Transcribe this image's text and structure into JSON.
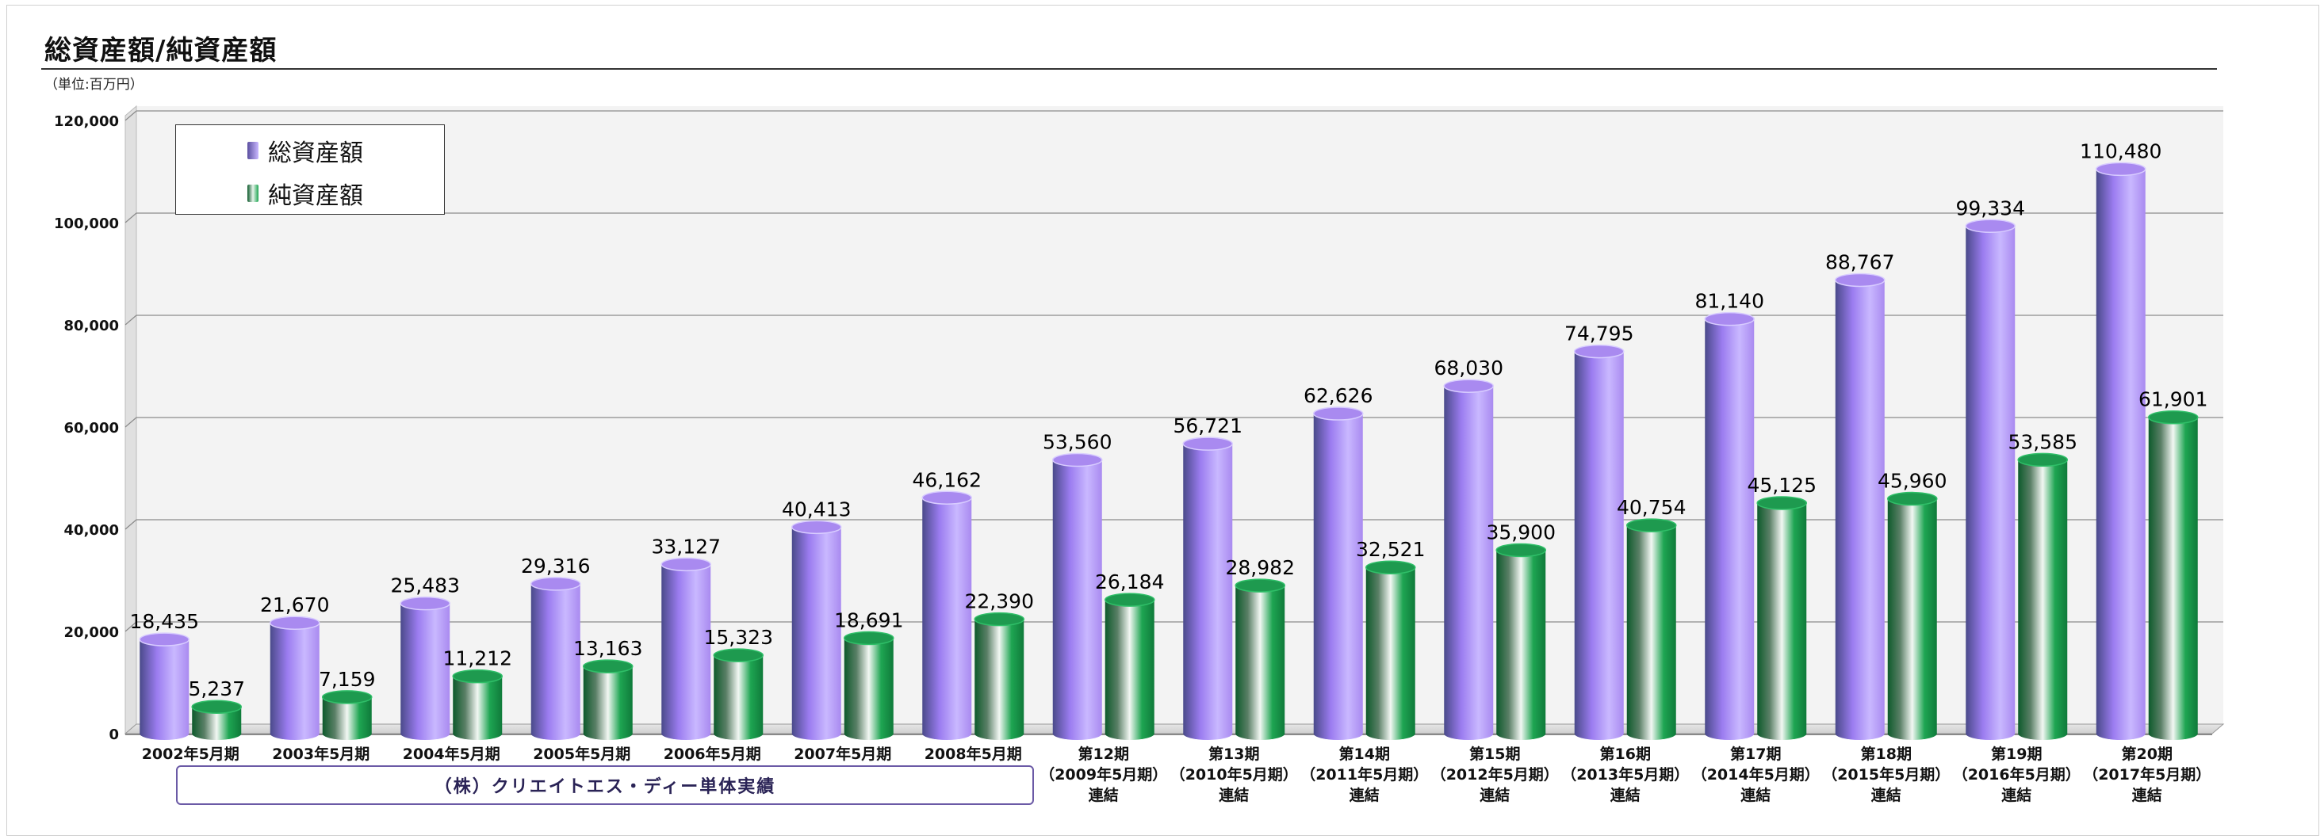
{
  "title": "総資産額/純資産額",
  "unit_label": "（単位:百万円）",
  "company_note": "（株）クリエイトエス・ディー単体実績",
  "colors": {
    "total_assets": "#a98af0",
    "total_assets_dark": "#5b4fa0",
    "net_assets": "#1e9a4f",
    "net_assets_dark": "#0d5a2b",
    "plot_bg": "#f3f3f3",
    "grid": "#8a8a8a"
  },
  "chart_data": {
    "type": "bar",
    "style": "3d-cylinder",
    "title": "総資産額/純資産額",
    "ylim": [
      0,
      120000
    ],
    "yticks": [
      0,
      20000,
      40000,
      60000,
      80000,
      100000,
      120000
    ],
    "ytick_labels": [
      "0",
      "20,000",
      "40,000",
      "60,000",
      "80,000",
      "100,000",
      "120,000"
    ],
    "grid": true,
    "legend": "top-left",
    "categories": [
      [
        "2002年5月期"
      ],
      [
        "2003年5月期"
      ],
      [
        "2004年5月期"
      ],
      [
        "2005年5月期"
      ],
      [
        "2006年5月期"
      ],
      [
        "2007年5月期"
      ],
      [
        "2008年5月期"
      ],
      [
        "第12期",
        "（2009年5月期）",
        "連結"
      ],
      [
        "第13期",
        "（2010年5月期）",
        "連結"
      ],
      [
        "第14期",
        "（2011年5月期）",
        "連結"
      ],
      [
        "第15期",
        "（2012年5月期）",
        "連結"
      ],
      [
        "第16期",
        "（2013年5月期）",
        "連結"
      ],
      [
        "第17期",
        "（2014年5月期）",
        "連結"
      ],
      [
        "第18期",
        "（2015年5月期）",
        "連結"
      ],
      [
        "第19期",
        "（2016年5月期）",
        "連結"
      ],
      [
        "第20期",
        "（2017年5月期）",
        "連結"
      ]
    ],
    "series": [
      {
        "name": "総資産額",
        "values": [
          18435,
          21670,
          25483,
          29316,
          33127,
          40413,
          46162,
          53560,
          56721,
          62626,
          68030,
          74795,
          81140,
          88767,
          99334,
          110480
        ],
        "labels": [
          "18,435",
          "21,670",
          "25,483",
          "29,316",
          "33,127",
          "40,413",
          "46,162",
          "53,560",
          "56,721",
          "62,626",
          "68,030",
          "74,795",
          "81,140",
          "88,767",
          "99,334",
          "110,480"
        ]
      },
      {
        "name": "純資産額",
        "values": [
          5237,
          7159,
          11212,
          13163,
          15323,
          18691,
          22390,
          26184,
          28982,
          32521,
          35900,
          40754,
          45125,
          45960,
          53585,
          61901
        ],
        "labels": [
          "5,237",
          "7,159",
          "11,212",
          "13,163",
          "15,323",
          "18,691",
          "22,390",
          "26,184",
          "28,982",
          "32,521",
          "35,900",
          "40,754",
          "45,125",
          "45,960",
          "53,585",
          "61,901"
        ]
      }
    ]
  }
}
